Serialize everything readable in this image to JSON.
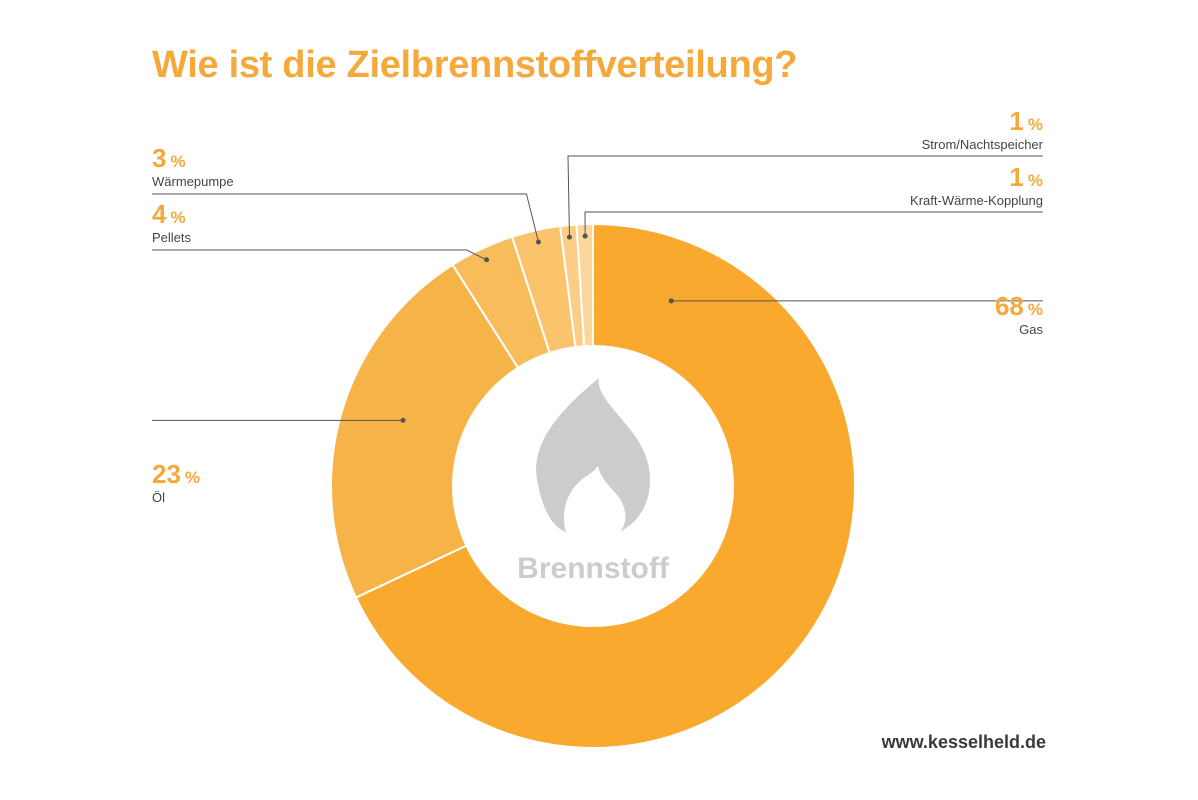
{
  "title": "Wie ist die Zielbrennstoffverteilung?",
  "center_label": "Brennstoff",
  "source": "www.kesselheld.de",
  "percent_sign": "%",
  "colors": {
    "accent": "#f6a93b",
    "icon": "#cccccc",
    "leader": "#555555"
  },
  "chart_data": {
    "type": "pie",
    "donut": true,
    "title": "Wie ist die Zielbrennstoffverteilung?",
    "slices": [
      {
        "label": "Gas",
        "value": 68,
        "display": "68",
        "color": "#f9a92d"
      },
      {
        "label": "Öl",
        "value": 23,
        "display": "23",
        "color": "#f6b347"
      },
      {
        "label": "Pellets",
        "value": 4,
        "display": "4",
        "color": "#f9bc5b"
      },
      {
        "label": "Wärmepumpe",
        "value": 3,
        "display": "3",
        "color": "#fbc46c"
      },
      {
        "label": "Strom/Nachtspeicher",
        "value": 1,
        "display": "1",
        "color": "#fccd86"
      },
      {
        "label": "Kraft-Wärme-Kopplung",
        "value": 1,
        "display": "1",
        "color": "#fcd79c"
      }
    ]
  }
}
